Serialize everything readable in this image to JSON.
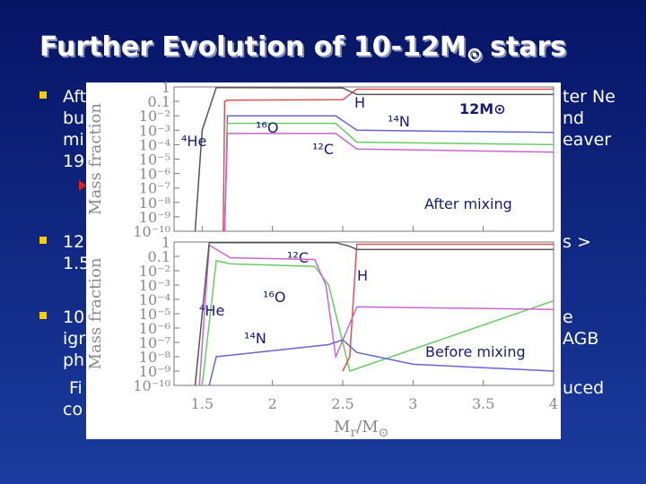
{
  "title": {
    "main": "Further Evolution of 10-12M",
    "symbol": "⊙",
    "end": "stars"
  },
  "bullets": [
    {
      "lines": [
        {
          "left": "Aft",
          "right": "ter Ne"
        },
        {
          "left": "bu",
          "right": "nd"
        },
        {
          "left": "mi",
          "right": "eaver"
        },
        {
          "left": "19"
        }
      ]
    },
    {
      "lines": [
        {
          "left": "12",
          "right": "s >"
        },
        {
          "left": "1.5"
        }
      ]
    },
    {
      "lines": [
        {
          "left": "10",
          "right": "e"
        },
        {
          "left": "igr",
          "right": "AGB"
        },
        {
          "left": "ph"
        },
        {
          "left": "Fi",
          "right": "uced"
        },
        {
          "left": "co"
        }
      ]
    }
  ],
  "chart_data": [
    {
      "type": "line",
      "log_y": true,
      "y_label": "Mass fraction",
      "annotations": [
        "12M⊙",
        "After mixing"
      ],
      "xlim": [
        1.3,
        4
      ],
      "xticks": [
        1.5,
        2,
        2.5,
        3,
        3.5,
        4
      ],
      "ylim": [
        1e-10,
        1
      ],
      "yticks": [
        1,
        0.1,
        {
          "value": 0.01,
          "label": "10⁻²"
        },
        {
          "value": 0.001,
          "label": "10⁻³"
        },
        {
          "value": 0.0001,
          "label": "10⁻⁴"
        },
        {
          "value": 1e-05,
          "label": "10⁻⁵"
        },
        {
          "value": 1e-06,
          "label": "10⁻⁶"
        },
        {
          "value": 1e-07,
          "label": "10⁻⁷"
        },
        {
          "value": 1e-08,
          "label": "10⁻⁸"
        },
        {
          "value": 1e-09,
          "label": "10⁻⁹"
        },
        {
          "value": 1e-10,
          "label": "10⁻¹⁰"
        }
      ],
      "series": [
        {
          "name": "H",
          "color": "#e05050",
          "x": [
            1.65,
            1.66,
            1.68,
            2.5,
            2.6,
            4
          ],
          "values": [
            1e-10,
            0.1,
            0.12,
            0.13,
            0.7,
            0.7
          ]
        },
        {
          "name": "⁴He",
          "color": "#555555",
          "x": [
            1.45,
            1.5,
            1.6,
            2.5,
            2.6,
            4
          ],
          "values": [
            1e-10,
            0.001,
            0.9,
            0.85,
            0.3,
            0.3
          ]
        },
        {
          "name": "¹⁴N",
          "color": "#6666cc",
          "x": [
            1.66,
            1.68,
            2.45,
            2.6,
            4
          ],
          "values": [
            1e-10,
            0.01,
            0.01,
            0.001,
            0.0007
          ]
        },
        {
          "name": "¹²C",
          "color": "#66cc66",
          "x": [
            1.66,
            1.68,
            2.45,
            2.6,
            4
          ],
          "values": [
            1e-10,
            0.003,
            0.003,
            0.00015,
            0.0001
          ]
        },
        {
          "name": "¹⁶O",
          "color": "#cc66cc",
          "x": [
            1.66,
            1.68,
            2.45,
            2.6,
            4
          ],
          "values": [
            1e-10,
            0.0006,
            0.0006,
            5e-05,
            3e-05
          ]
        }
      ]
    },
    {
      "type": "line",
      "log_y": true,
      "y_label": "Mass fraction",
      "x_label": {
        "main": "M",
        "sub": "r",
        "mid": "/M",
        "symbol": "⊙"
      },
      "annotations": [
        "Before mixing"
      ],
      "xlim": [
        1.3,
        4
      ],
      "xticks": [
        1.5,
        2,
        2.5,
        3,
        3.5,
        4
      ],
      "ylim": [
        1e-10,
        1
      ],
      "yticks": [
        1,
        0.1,
        {
          "value": 0.01,
          "label": "10⁻²"
        },
        {
          "value": 0.001,
          "label": "10⁻³"
        },
        {
          "value": 0.0001,
          "label": "10⁻⁴"
        },
        {
          "value": 1e-05,
          "label": "10⁻⁵"
        },
        {
          "value": 1e-06,
          "label": "10⁻⁶"
        },
        {
          "value": 1e-07,
          "label": "10⁻⁷"
        },
        {
          "value": 1e-08,
          "label": "10⁻⁸"
        },
        {
          "value": 1e-09,
          "label": "10⁻⁹"
        },
        {
          "value": 1e-10,
          "label": "10⁻¹⁰"
        }
      ],
      "series": [
        {
          "name": "¹²C",
          "color": "#66cc66",
          "x": [
            1.5,
            1.6,
            1.7,
            2.3,
            2.4,
            2.55,
            4
          ],
          "values": [
            1e-10,
            0.05,
            0.03,
            0.02,
            0.001,
            1e-09,
            8e-05
          ]
        },
        {
          "name": "H",
          "color": "#e05050",
          "x": [
            2.5,
            2.55,
            2.6,
            4
          ],
          "values": [
            1e-09,
            1e-08,
            0.7,
            0.7
          ]
        },
        {
          "name": "¹⁶O",
          "color": "#cc66cc",
          "x": [
            1.48,
            1.55,
            1.7,
            2.3,
            2.38,
            2.45,
            2.6,
            4
          ],
          "values": [
            1e-10,
            0.6,
            0.08,
            0.06,
            0.001,
            1e-08,
            3e-05,
            2e-05
          ]
        },
        {
          "name": "⁴He",
          "color": "#555555",
          "x": [
            1.45,
            1.55,
            2.45,
            2.55,
            2.6,
            4
          ],
          "values": [
            1e-10,
            0.9,
            0.9,
            0.5,
            0.3,
            0.3
          ]
        },
        {
          "name": "¹⁴N",
          "color": "#6666cc",
          "x": [
            1.55,
            1.6,
            2.4,
            2.5,
            2.6,
            3,
            4
          ],
          "values": [
            1e-10,
            1e-08,
            7e-08,
            1.5e-07,
            2e-08,
            3e-09,
            1e-09
          ]
        }
      ]
    }
  ]
}
